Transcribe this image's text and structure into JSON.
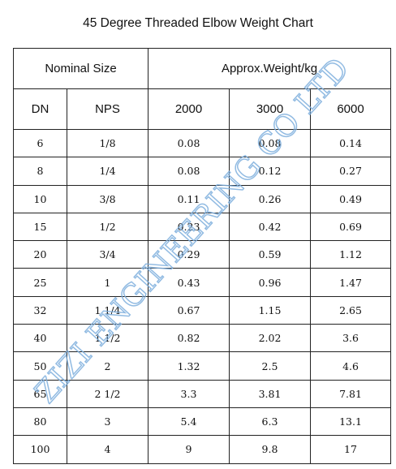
{
  "title": "45 Degree Threaded Elbow Weight Chart",
  "headers": {
    "group_nominal": "Nominal Size",
    "group_weight": "Approx.Weight/kg",
    "columns": [
      "DN",
      "NPS",
      "2000",
      "3000",
      "6000"
    ]
  },
  "rows": [
    [
      "6",
      "1/8",
      "0.08",
      "0.08",
      "0.14"
    ],
    [
      "8",
      "1/4",
      "0.08",
      "0.12",
      "0.27"
    ],
    [
      "10",
      "3/8",
      "0.11",
      "0.26",
      "0.49"
    ],
    [
      "15",
      "1/2",
      "0.23",
      "0.42",
      "0.69"
    ],
    [
      "20",
      "3/4",
      "0.29",
      "0.59",
      "1.12"
    ],
    [
      "25",
      "1",
      "0.43",
      "0.96",
      "1.47"
    ],
    [
      "32",
      "1 1/4",
      "0.67",
      "1.15",
      "2.65"
    ],
    [
      "40",
      "1 1/2",
      "0.82",
      "2.02",
      "3.6"
    ],
    [
      "50",
      "2",
      "1.32",
      "2.5",
      "4.6"
    ],
    [
      "65",
      "2 1/2",
      "3.3",
      "3.81",
      "7.81"
    ],
    [
      "80",
      "3",
      "5.4",
      "6.3",
      "13.1"
    ],
    [
      "100",
      "4",
      "9",
      "9.8",
      "17"
    ]
  ],
  "watermark": {
    "text": "ZIZI ENGINEERING CO LTD",
    "color": "#7fb0de"
  }
}
